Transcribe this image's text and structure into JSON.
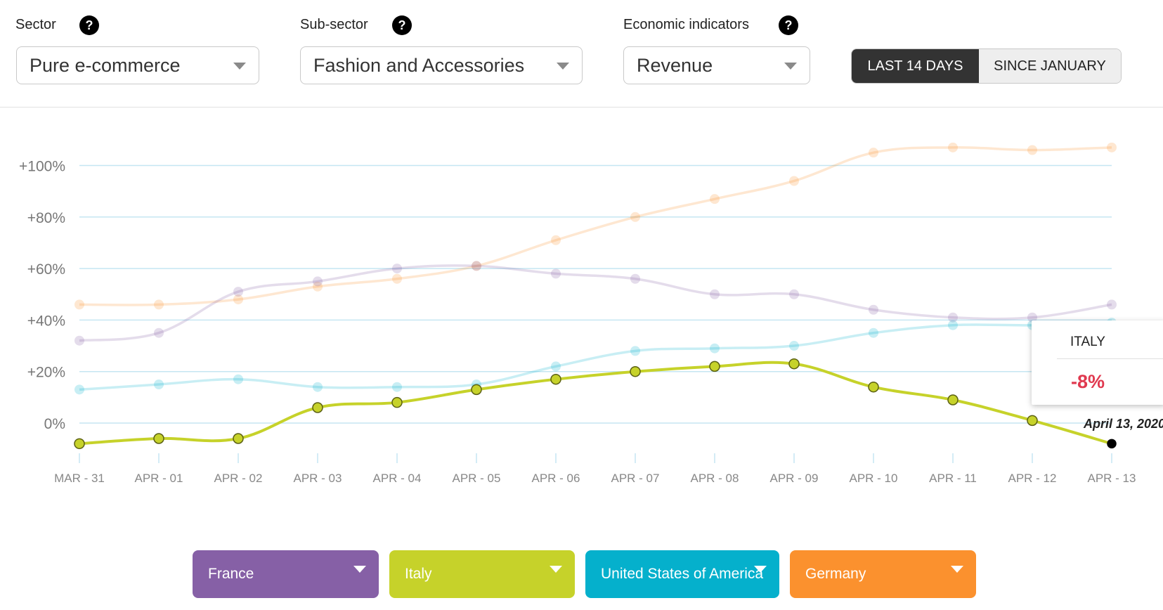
{
  "filters": {
    "sector": {
      "label": "Sector",
      "value": "Pure e-commerce"
    },
    "subsector": {
      "label": "Sub-sector",
      "value": "Fashion and Accessories"
    },
    "indicator": {
      "label": "Economic indicators",
      "value": "Revenue"
    },
    "help_glyph": "?"
  },
  "period_toggle": {
    "options": [
      "LAST 14 DAYS",
      "SINCE JANUARY"
    ],
    "selected": "LAST 14 DAYS"
  },
  "countries": [
    {
      "name": "France",
      "color": "#8660a6"
    },
    {
      "name": "Italy",
      "color": "#c6d22a"
    },
    {
      "name": "United States of America",
      "color": "#05b0cc"
    },
    {
      "name": "Germany",
      "color": "#fb912e"
    }
  ],
  "tooltip": {
    "country": "ITALY",
    "value": "-8%",
    "date": "April 13, 2020"
  },
  "chart_data": {
    "type": "line",
    "categories": [
      "MAR - 31",
      "APR - 01",
      "APR - 02",
      "APR - 03",
      "APR - 04",
      "APR - 05",
      "APR - 06",
      "APR - 07",
      "APR - 08",
      "APR - 09",
      "APR - 10",
      "APR - 11",
      "APR - 12",
      "APR - 13"
    ],
    "yticks": [
      "+100%",
      "+80%",
      "+60%",
      "+40%",
      "+20%",
      "0%"
    ],
    "ytick_values": [
      100,
      80,
      60,
      40,
      20,
      0
    ],
    "ylim": [
      -12,
      115
    ],
    "grid": true,
    "highlighted_series": "Italy",
    "series": [
      {
        "name": "Germany",
        "color": "#fb912e",
        "values": [
          46,
          46,
          48,
          53,
          56,
          61,
          71,
          80,
          87,
          94,
          105,
          107,
          106,
          107
        ]
      },
      {
        "name": "France",
        "color": "#8660a6",
        "values": [
          32,
          35,
          51,
          55,
          60,
          61,
          58,
          56,
          50,
          50,
          44,
          41,
          41,
          46
        ]
      },
      {
        "name": "United States of America",
        "color": "#05b0cc",
        "values": [
          13,
          15,
          17,
          14,
          14,
          15,
          22,
          28,
          29,
          30,
          35,
          38,
          38,
          39
        ]
      },
      {
        "name": "Italy",
        "color": "#c6d22a",
        "values": [
          -8,
          -6,
          -6,
          6,
          8,
          13,
          17,
          20,
          22,
          23,
          14,
          9,
          1,
          -8
        ]
      }
    ]
  }
}
